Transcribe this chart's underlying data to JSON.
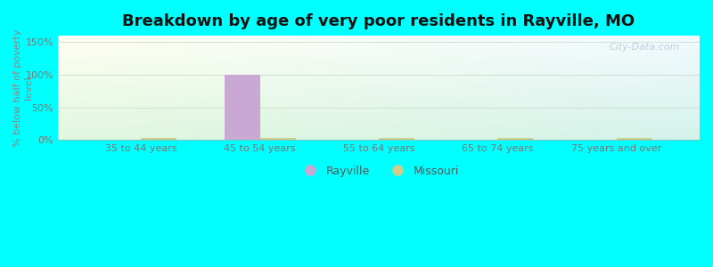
{
  "title": "Breakdown by age of very poor residents in Rayville, MO",
  "categories": [
    "35 to 44 years",
    "45 to 54 years",
    "55 to 64 years",
    "65 to 74 years",
    "75 years and over"
  ],
  "rayville_values": [
    0,
    100,
    0,
    0,
    0
  ],
  "missouri_values": [
    3,
    3,
    3,
    3,
    3
  ],
  "rayville_color": "#c9a8d4",
  "missouri_color": "#cece8a",
  "bar_width": 0.3,
  "ylim": [
    0,
    160
  ],
  "yticks": [
    0,
    50,
    100,
    150
  ],
  "ytick_labels": [
    "0%",
    "50%",
    "100%",
    "150%"
  ],
  "ylabel": "% below half of poverty\nlevel",
  "ylabel_color": "#888888",
  "background_color": "#00ffff",
  "title_fontsize": 13,
  "tick_fontsize": 8,
  "legend_labels": [
    "Rayville",
    "Missouri"
  ],
  "watermark": "City-Data.com"
}
